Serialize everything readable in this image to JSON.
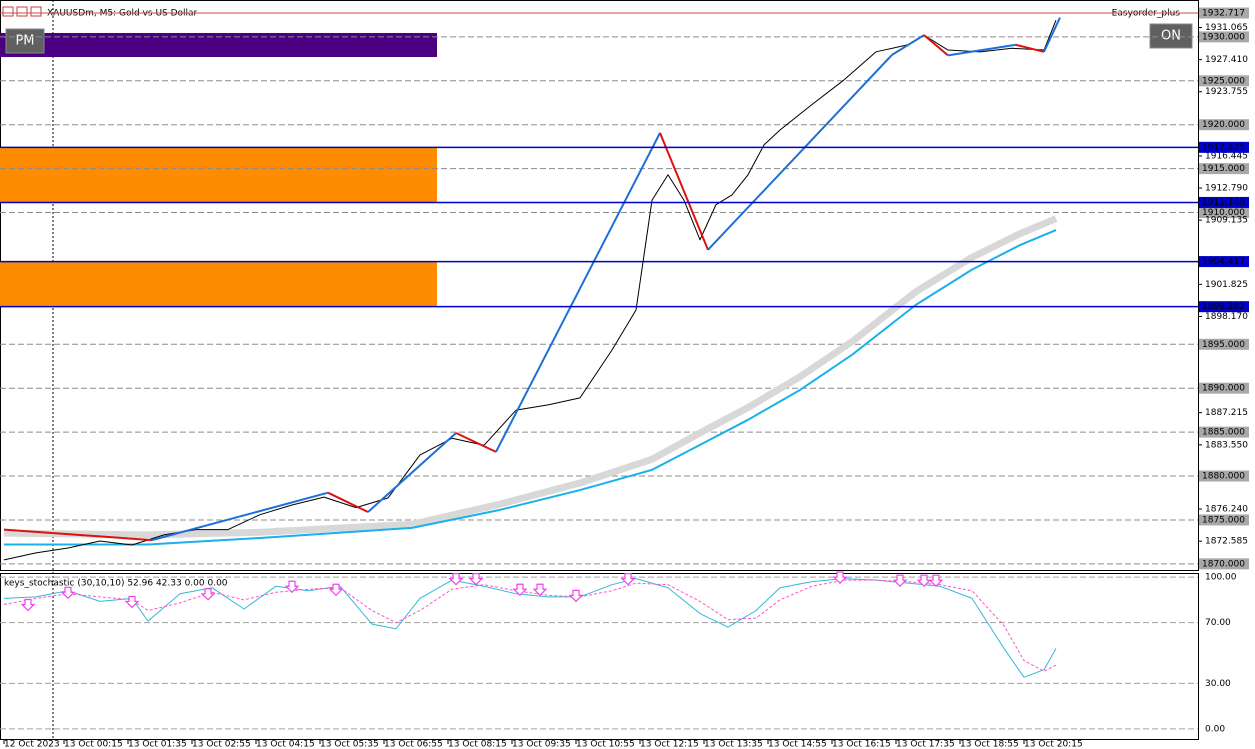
{
  "header": {
    "symbol": "XAUUSDm, M5: Gold vs US Dollar",
    "expert": "Easyorder_plus",
    "pm_button": "PM",
    "on_button": "ON"
  },
  "chart_data": [
    {
      "type": "line",
      "xlim": [
        0,
        299
      ],
      "ylim": [
        1869.3,
        1934.2
      ],
      "xticks": [
        {
          "value": 0,
          "label": "12 Oct 2023"
        },
        {
          "value": 15,
          "label": "13 Oct 00:15"
        },
        {
          "value": 31,
          "label": "13 Oct 01:35"
        },
        {
          "value": 47,
          "label": "13 Oct 02:55"
        },
        {
          "value": 63,
          "label": "13 Oct 04:15"
        },
        {
          "value": 79,
          "label": "13 Oct 05:35"
        },
        {
          "value": 95,
          "label": "13 Oct 06:55"
        },
        {
          "value": 111,
          "label": "13 Oct 08:15"
        },
        {
          "value": 127,
          "label": "13 Oct 09:35"
        },
        {
          "value": 143,
          "label": "13 Oct 10:55"
        },
        {
          "value": 159,
          "label": "13 Oct 12:15"
        },
        {
          "value": 175,
          "label": "13 Oct 13:35"
        },
        {
          "value": 191,
          "label": "13 Oct 14:55"
        },
        {
          "value": 207,
          "label": "13 Oct 16:15"
        },
        {
          "value": 223,
          "label": "13 Oct 17:35"
        },
        {
          "value": 239,
          "label": "13 Oct 18:55"
        },
        {
          "value": 255,
          "label": "13 Oct 20:15"
        }
      ],
      "yticks": [
        1931.065,
        {
          "value": 1927.41,
          "label": "1927.410"
        },
        1923.755,
        1916.445,
        {
          "value": 1912.79,
          "label": "1912.790"
        },
        1909.135,
        1901.825,
        {
          "value": 1898.17,
          "label": "1898.170"
        },
        {
          "value": 1887.215,
          "label": "1887.215"
        },
        {
          "value": 1883.55,
          "label": "1883.550"
        },
        {
          "value": 1876.24,
          "label": "1876.240"
        },
        1872.585
      ],
      "round_levels": [
        {
          "value": 1930,
          "label": "1930.000"
        },
        {
          "value": 1925,
          "label": "1925.000"
        },
        {
          "value": 1920,
          "label": "1920.000"
        },
        {
          "value": 1915,
          "label": "1915.000"
        },
        {
          "value": 1910,
          "label": "1910.000"
        },
        {
          "value": 1895,
          "label": "1895.000"
        },
        {
          "value": 1890,
          "label": "1890.000"
        },
        {
          "value": 1885,
          "label": "1885.000"
        },
        {
          "value": 1880,
          "label": "1880.000"
        },
        {
          "value": 1875,
          "label": "1875.000"
        },
        {
          "value": 1870,
          "label": "1870.000"
        }
      ],
      "levels": [
        1917.425,
        1911.149,
        1904.417,
        1899.282
      ],
      "levels_color": "#0000c8",
      "zones_color": "#ff8c00",
      "bid_line": 1932.717,
      "bid_color": "#d04848",
      "series": [
        {
          "color": "#d8d8d8",
          "width": 7,
          "x": [
            0,
            36,
            64,
            102,
            124,
            144,
            162,
            174,
            186,
            199,
            212,
            228,
            242,
            254,
            263
          ],
          "values": [
            1873.5,
            1873.3,
            1873.6,
            1874.5,
            1876.8,
            1879.2,
            1881.9,
            1884.9,
            1887.8,
            1891.3,
            1895.3,
            1901.0,
            1904.9,
            1907.6,
            1909.3
          ]
        },
        {
          "color": "#1ab0ec",
          "width": 2,
          "x": [
            0,
            36,
            64,
            102,
            124,
            144,
            162,
            174,
            186,
            199,
            212,
            228,
            242,
            254,
            263
          ],
          "values": [
            1872.2,
            1872.2,
            1872.95,
            1874.1,
            1876.15,
            1878.4,
            1880.7,
            1883.55,
            1886.4,
            1889.8,
            1893.8,
            1899.5,
            1903.5,
            1906.3,
            1908.0
          ]
        },
        {
          "color": "#000000",
          "width": 1,
          "x": [
            0,
            8,
            16,
            24,
            32,
            40,
            48,
            56,
            64,
            72,
            80,
            88,
            96,
            104,
            112,
            120,
            128,
            136,
            144,
            152,
            158,
            162,
            166,
            170,
            174,
            178,
            182,
            186,
            190,
            194,
            202,
            210,
            218,
            226,
            230,
            236,
            244,
            252,
            260,
            263
          ],
          "values": [
            1870.45,
            1871.25,
            1871.8,
            1872.6,
            1872.15,
            1873.3,
            1873.9,
            1873.9,
            1875.6,
            1876.7,
            1877.6,
            1876.4,
            1877.5,
            1882.4,
            1884.3,
            1883.5,
            1887.5,
            1888.1,
            1888.9,
            1894.35,
            1898.9,
            1911.4,
            1914.3,
            1911.4,
            1906.9,
            1910.9,
            1912.0,
            1914.3,
            1917.7,
            1919.4,
            1922.3,
            1925.1,
            1928.3,
            1929.1,
            1930.2,
            1928.5,
            1928.3,
            1928.7,
            1928.5,
            1931.9
          ]
        },
        {
          "color": "#1e6fd9",
          "down_color": "#e01010",
          "width": 2,
          "x": [
            0,
            37,
            81,
            91,
            113,
            123,
            164,
            176,
            222,
            230,
            236,
            253,
            260,
            264
          ],
          "values": [
            1873.9,
            1872.7,
            1878.1,
            1875.9,
            1884.9,
            1882.75,
            1919.07,
            1905.75,
            1927.95,
            1930.2,
            1927.9,
            1929.1,
            1928.3,
            1932.2
          ]
        }
      ]
    },
    {
      "type": "line",
      "title": "keys_stochastic (30,10,10) 52.96 42.33 0.00 0.00",
      "xlim": [
        0,
        299
      ],
      "ylim": [
        -7.3,
        102.7
      ],
      "yticks": [
        {
          "value": 100,
          "label": "100.00"
        },
        {
          "value": 70,
          "label": "70.00"
        },
        {
          "value": 30,
          "label": "30.00"
        },
        {
          "value": 0,
          "label": "0.00"
        }
      ],
      "series": [
        {
          "color": "#33b8d8",
          "width": 1,
          "x": [
            0,
            8,
            16,
            24,
            32,
            36,
            44,
            52,
            60,
            68,
            76,
            84,
            92,
            98,
            104,
            112,
            120,
            128,
            136,
            144,
            152,
            158,
            166,
            174,
            181,
            188,
            194,
            202,
            210,
            218,
            226,
            234,
            242,
            250,
            255,
            260,
            263
          ],
          "values": [
            86,
            87,
            91,
            84,
            86,
            71,
            89,
            93,
            79,
            94,
            91,
            94,
            69,
            66,
            86,
            98,
            94,
            89,
            87,
            87,
            95,
            99,
            93,
            76,
            67,
            78,
            93,
            97,
            99,
            98,
            96,
            94,
            86,
            53,
            34,
            39,
            53
          ]
        },
        {
          "color": "#ff55cc",
          "width": 1,
          "dashed": true,
          "x": [
            0,
            8,
            16,
            24,
            32,
            36,
            44,
            52,
            60,
            68,
            76,
            84,
            92,
            98,
            104,
            112,
            120,
            128,
            136,
            144,
            152,
            158,
            166,
            174,
            181,
            188,
            194,
            202,
            210,
            218,
            226,
            234,
            242,
            250,
            255,
            260,
            263
          ],
          "values": [
            82,
            86,
            89,
            87,
            85,
            78,
            83,
            90,
            85,
            90,
            92,
            93,
            78,
            70,
            78,
            92,
            95,
            91,
            88,
            87,
            91,
            96,
            95,
            84,
            72,
            73,
            85,
            94,
            98,
            98,
            97,
            95,
            91,
            68,
            45,
            38,
            42
          ]
        }
      ],
      "arrows": {
        "color": "#ee44ee",
        "x": [
          6,
          16,
          32,
          51,
          72,
          83,
          113,
          118,
          129,
          134,
          143,
          156,
          209,
          224,
          230,
          233
        ],
        "values": [
          80,
          88,
          82,
          87,
          92,
          90,
          97,
          97,
          90,
          90,
          86,
          97,
          98,
          96,
          96,
          96
        ]
      }
    }
  ]
}
